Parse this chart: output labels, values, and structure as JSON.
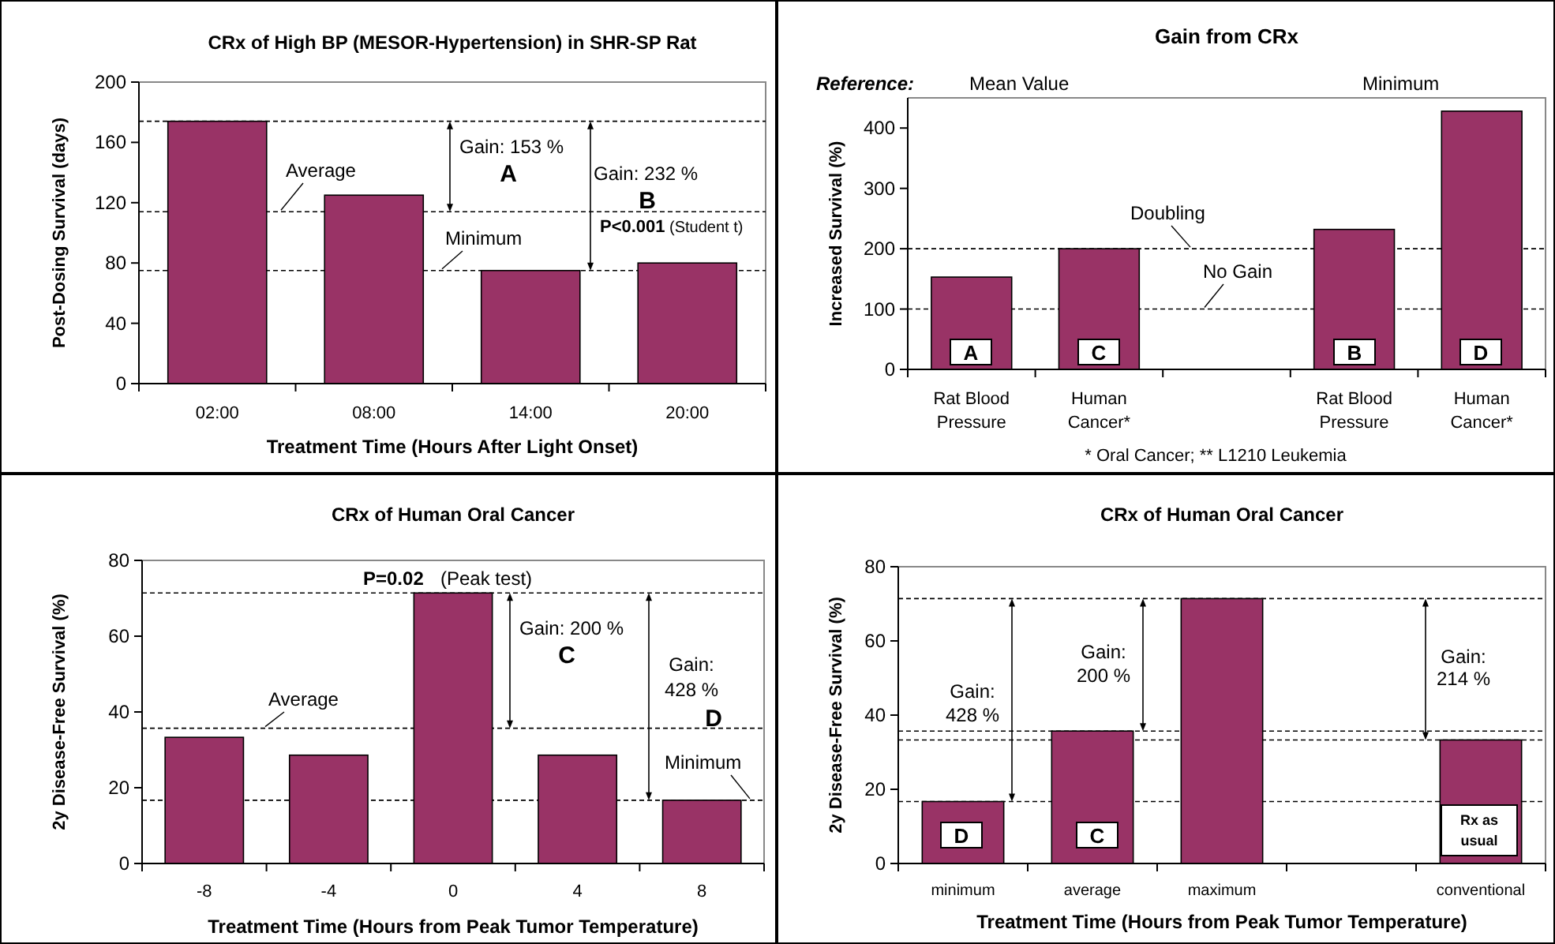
{
  "chart_data": [
    {
      "type": "bar",
      "title": "CRx of High BP (MESOR-Hypertension) in SHR-SP Rat",
      "xlabel": "Treatment Time (Hours After Light Onset)",
      "ylabel": "Post-Dosing Survival (days)",
      "categories": [
        "02:00",
        "08:00",
        "14:00",
        "20:00"
      ],
      "values": [
        174,
        125,
        75,
        80
      ],
      "color": "#993366",
      "ylim": [
        0,
        200
      ],
      "yticks": [
        0,
        40,
        80,
        120,
        160,
        200
      ],
      "ref_lines": [
        {
          "axis": "y",
          "value": 174,
          "line_style": "dashed"
        },
        {
          "axis": "y",
          "value": 114,
          "label": "Average",
          "line_style": "dashed"
        },
        {
          "axis": "y",
          "value": 75,
          "label": "Minimum",
          "line_style": "dashed"
        }
      ],
      "annotations": [
        {
          "text": "Gain: 153 %",
          "y": 174
        },
        "A",
        {
          "text": "Gain: 232 %",
          "y": 174
        },
        "B",
        "P<0.001",
        "(Student t)"
      ]
    },
    {
      "type": "bar",
      "title": "Gain from CRx",
      "ylabel": "Increased Survival (%)",
      "categories": [
        "Rat Blood Pressure",
        "Human Cancer*",
        null,
        "Rat Blood Pressure",
        "Human Cancer*"
      ],
      "values": [
        153,
        200,
        null,
        232,
        428
      ],
      "color": "#993366",
      "ylim": [
        0,
        450
      ],
      "yticks": [
        0,
        100,
        200,
        300,
        400
      ],
      "ref_lines": [
        {
          "axis": "y",
          "value": 200,
          "label": "Doubling",
          "line_style": "dashed"
        },
        {
          "axis": "y",
          "value": 100,
          "label": "No Gain",
          "line_style": "dashed"
        }
      ],
      "annotations": [
        "Reference:",
        "Mean Value",
        "Minimum",
        "A",
        "C",
        "B",
        "D",
        "* Oral Cancer; ** L1210 Leukemia"
      ]
    },
    {
      "type": "bar",
      "title": "CRx of Human Oral Cancer",
      "xlabel": "Treatment Time (Hours from Peak Tumor Temperature)",
      "ylabel": "2y Disease-Free Survival (%)",
      "categories": [
        "-8",
        "-4",
        "0",
        "4",
        "8"
      ],
      "values": [
        33.3,
        28.6,
        71.4,
        28.6,
        16.7
      ],
      "color": "#993366",
      "ylim": [
        0,
        80
      ],
      "yticks": [
        0,
        20,
        40,
        60,
        80
      ],
      "ref_lines": [
        {
          "axis": "y",
          "value": 71.4,
          "line_style": "dashed"
        },
        {
          "axis": "y",
          "value": 35.7,
          "label": "Average",
          "line_style": "dashed"
        },
        {
          "axis": "y",
          "value": 16.7,
          "label": "Minimum",
          "line_style": "dashed"
        }
      ],
      "annotations": [
        {
          "text": "P=0.02",
          "x": "0",
          "y": 71.4
        },
        {
          "text": "(Peak test)",
          "x": "0",
          "y": 71.4
        },
        {
          "text": "Gain: 200 %",
          "y": 71.4
        },
        "C",
        "Gain:\n428 %",
        "D"
      ]
    },
    {
      "type": "bar",
      "title": "CRx of Human Oral Cancer",
      "xlabel": "Treatment Time (Hours from Peak Tumor Temperature)",
      "ylabel": "2y Disease-Free Survival (%)",
      "categories": [
        "minimum",
        "average",
        "maximum",
        null,
        "conventional"
      ],
      "values": [
        16.7,
        35.7,
        71.4,
        null,
        33.3
      ],
      "color": "#993366",
      "ylim": [
        0,
        80
      ],
      "yticks": [
        0,
        20,
        40,
        60,
        80
      ],
      "ref_lines": [
        {
          "axis": "y",
          "value": 71.4,
          "line_style": "dashed"
        },
        {
          "axis": "y",
          "value": 35.7,
          "line_style": "dashed"
        },
        {
          "axis": "y",
          "value": 16.7,
          "line_style": "dashed"
        },
        {
          "axis": "y",
          "value": 33.3,
          "line_style": "dashed"
        }
      ],
      "annotations": [
        "Gain:\n428 %",
        {
          "text": "Gain:\n200 %",
          "y": 71.4
        },
        {
          "text": "Gain:\n214 %",
          "y": 71.4
        },
        "D",
        "C",
        "Rx as\nusual"
      ]
    }
  ]
}
